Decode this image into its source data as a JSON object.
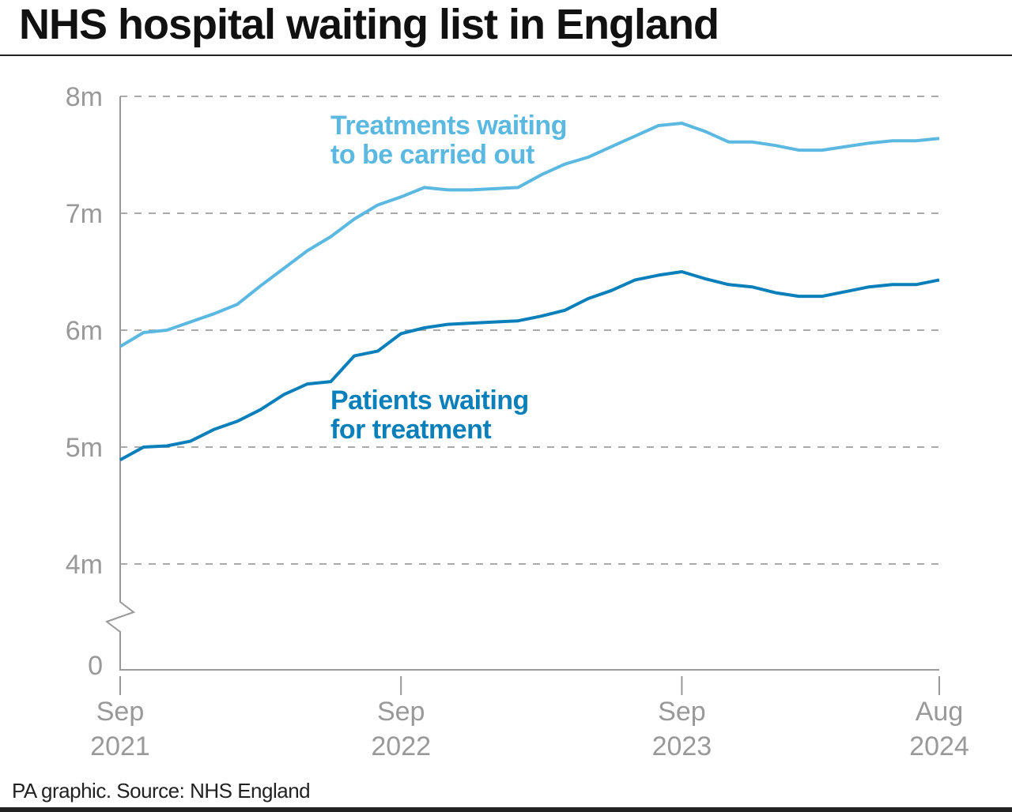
{
  "title": "NHS hospital waiting list in England",
  "source": "PA graphic. Source: NHS England",
  "chart_data": {
    "type": "line",
    "title": "NHS hospital waiting list in England",
    "xlabel": "",
    "ylabel": "",
    "ylim": [
      4,
      8
    ],
    "y_axis_break": "between 0 and 4m",
    "grid": "horizontal dashed",
    "y_ticks": [
      "8m",
      "7m",
      "6m",
      "5m",
      "4m",
      "0"
    ],
    "x_ticks": [
      {
        "line1": "Sep",
        "line2": "2021",
        "index": 0
      },
      {
        "line1": "Sep",
        "line2": "2022",
        "index": 12
      },
      {
        "line1": "Sep",
        "line2": "2023",
        "index": 24
      },
      {
        "line1": "Aug",
        "line2": "2024",
        "index": 35
      }
    ],
    "x_range": "Sep 2021 – Aug 2024, monthly",
    "unit": "millions",
    "series": [
      {
        "name": "Treatments waiting to be carried out",
        "label_lines": [
          "Treatments waiting",
          "to be carried out"
        ],
        "color": "#5bb8e0",
        "values": [
          5.86,
          5.98,
          6.0,
          6.07,
          6.14,
          6.22,
          6.38,
          6.53,
          6.68,
          6.8,
          6.95,
          7.07,
          7.14,
          7.22,
          7.2,
          7.2,
          7.21,
          7.22,
          7.33,
          7.42,
          7.48,
          7.57,
          7.66,
          7.75,
          7.77,
          7.7,
          7.61,
          7.61,
          7.58,
          7.54,
          7.54,
          7.57,
          7.6,
          7.62,
          7.62,
          7.64
        ]
      },
      {
        "name": "Patients waiting for treatment",
        "label_lines": [
          "Patients waiting",
          "for treatment"
        ],
        "color": "#0a7fb9",
        "values": [
          4.89,
          5.0,
          5.01,
          5.05,
          5.15,
          5.22,
          5.32,
          5.45,
          5.54,
          5.56,
          5.78,
          5.82,
          5.97,
          6.02,
          6.05,
          6.06,
          6.07,
          6.08,
          6.12,
          6.17,
          6.27,
          6.34,
          6.43,
          6.47,
          6.5,
          6.44,
          6.39,
          6.37,
          6.32,
          6.29,
          6.29,
          6.33,
          6.37,
          6.39,
          6.39,
          6.43
        ]
      }
    ]
  }
}
